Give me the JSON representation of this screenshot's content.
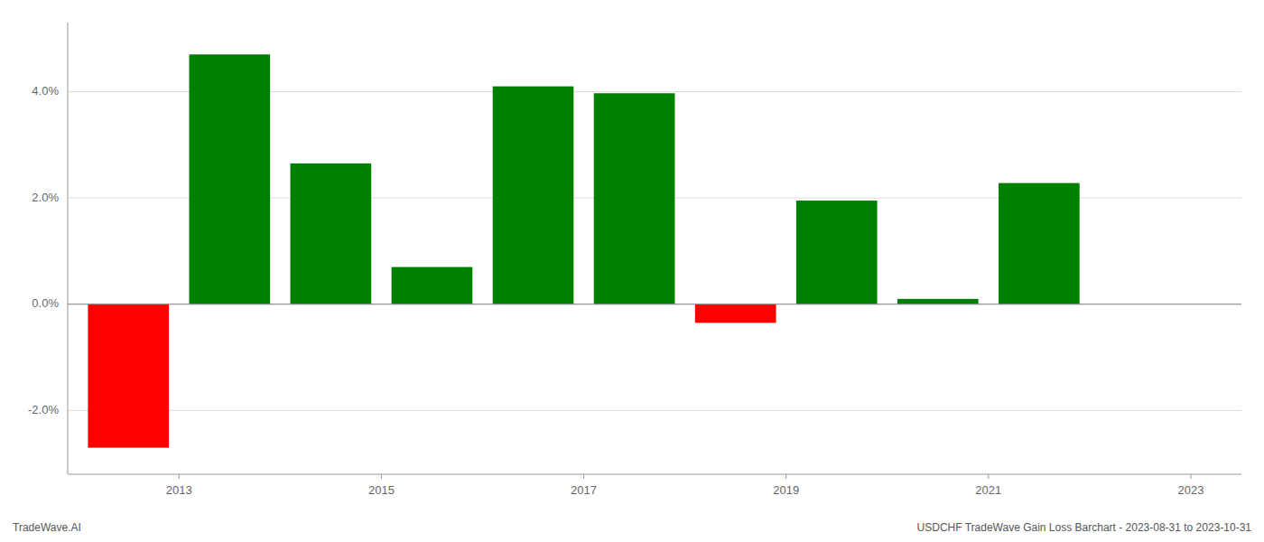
{
  "chart_data": {
    "type": "bar",
    "x": [
      2013,
      2014,
      2015,
      2016,
      2017,
      2018,
      2019,
      2020,
      2021,
      2022
    ],
    "values": [
      -0.027,
      0.047,
      0.0265,
      0.007,
      0.041,
      0.0397,
      -0.0035,
      0.0195,
      0.001,
      0.0228
    ],
    "colors": [
      "#ff0000",
      "#008000",
      "#008000",
      "#008000",
      "#008000",
      "#008000",
      "#ff0000",
      "#008000",
      "#008000",
      "#008000"
    ],
    "xlim": [
      2012.4,
      2024.0
    ],
    "xticks": [
      {
        "value": 2013.5,
        "label": "2013"
      },
      {
        "value": 2015.5,
        "label": "2015"
      },
      {
        "value": 2017.5,
        "label": "2017"
      },
      {
        "value": 2019.5,
        "label": "2019"
      },
      {
        "value": 2021.5,
        "label": "2021"
      },
      {
        "value": 2023.5,
        "label": "2023"
      }
    ],
    "ylim": [
      -0.032,
      0.053
    ],
    "yticks": [
      {
        "value": -0.02,
        "label": "-2.0%"
      },
      {
        "value": 0.0,
        "label": "0.0%"
      },
      {
        "value": 0.02,
        "label": "2.0%"
      },
      {
        "value": 0.04,
        "label": "4.0%"
      }
    ],
    "grid": true,
    "annotations": [
      "TradeWave.AI",
      "USDCHF TradeWave Gain Loss Barchart - 2023-08-31 to 2023-10-31"
    ]
  }
}
